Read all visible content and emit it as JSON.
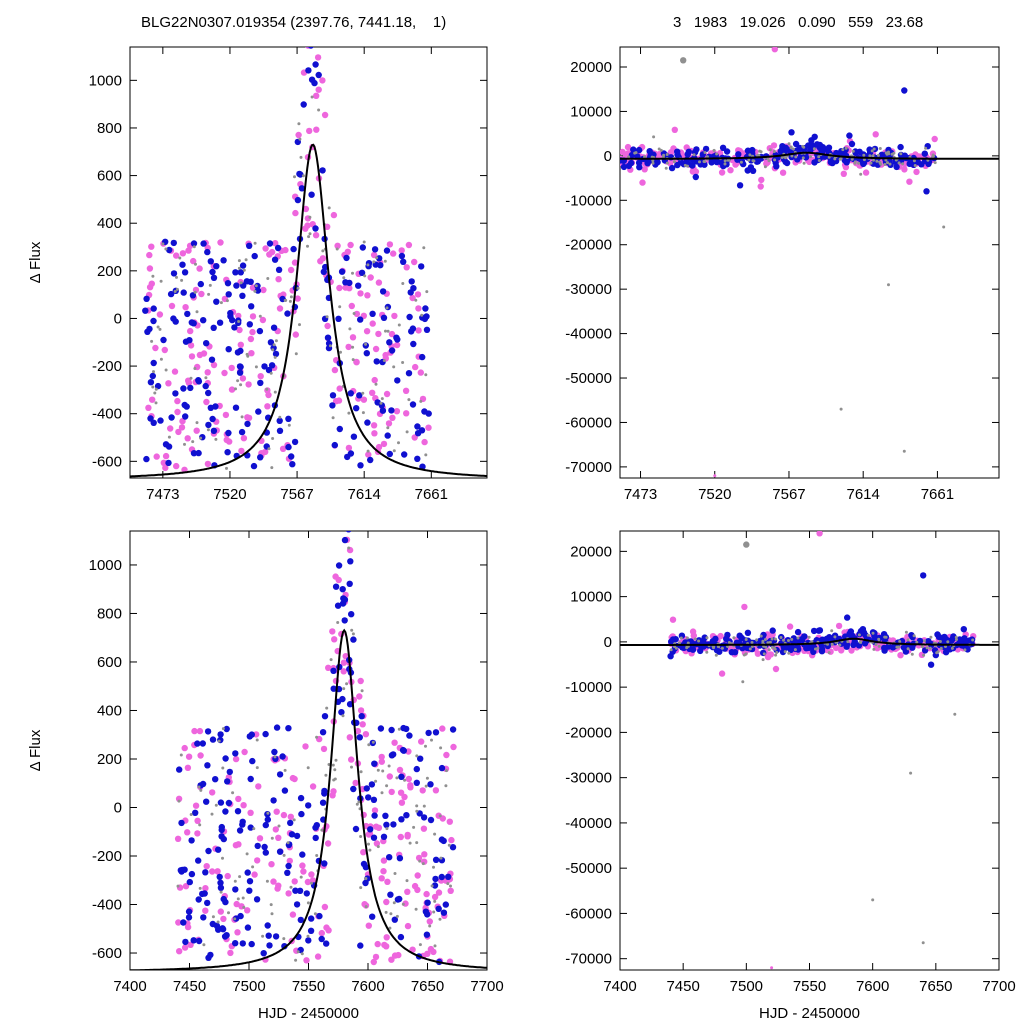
{
  "header": {
    "left": "BLG22N0307.019354 (2397.76, 7441.18,    1)",
    "right": "3   1983   19.026   0.090   559   23.68"
  },
  "colors": {
    "series_a": "#ee66dd",
    "series_b": "#1010d0",
    "series_c": "#909090",
    "model": "#000000"
  },
  "chart_data": [
    {
      "type": "scatter",
      "panel": "top-left",
      "title": "",
      "xlabel": "",
      "ylabel": "Δ Flux",
      "xlim": [
        7450,
        7700
      ],
      "ylim": [
        -670,
        1140
      ],
      "xticks": [
        7473,
        7520,
        7567,
        7614,
        7661
      ],
      "yticks": [
        -600,
        -400,
        -200,
        0,
        200,
        400,
        600,
        800,
        1000
      ],
      "model": {
        "type": "peak",
        "t0": 7578,
        "peak": 730,
        "baseline": -680,
        "width": 14
      },
      "series": [
        {
          "color": "series_a",
          "x_range": [
            7460,
            7660
          ]
        },
        {
          "color": "series_b",
          "x_range": [
            7460,
            7660
          ]
        },
        {
          "color": "series_c",
          "x_range": [
            7460,
            7660
          ]
        }
      ]
    },
    {
      "type": "scatter",
      "panel": "top-right",
      "title": "",
      "xlabel": "",
      "ylabel": "",
      "xlim": [
        7460,
        7700
      ],
      "ylim": [
        -72500,
        24500
      ],
      "xticks": [
        7473,
        7520,
        7567,
        7614,
        7661
      ],
      "yticks": [
        -70000,
        -60000,
        -50000,
        -40000,
        -30000,
        -20000,
        -10000,
        0,
        10000,
        20000
      ],
      "model": {
        "type": "peak",
        "t0": 7578,
        "peak": 700,
        "baseline": -700,
        "width": 18
      },
      "series": [
        {
          "color": "series_a",
          "x_range": [
            7460,
            7660
          ]
        },
        {
          "color": "series_b",
          "x_range": [
            7460,
            7660
          ]
        },
        {
          "color": "series_c",
          "x_range": [
            7460,
            7660
          ]
        }
      ]
    },
    {
      "type": "scatter",
      "panel": "bottom-left",
      "title": "",
      "xlabel": "HJD - 2450000",
      "ylabel": "Δ Flux",
      "xlim": [
        7400,
        7700
      ],
      "ylim": [
        -670,
        1140
      ],
      "xticks": [
        7400,
        7450,
        7500,
        7550,
        7600,
        7650,
        7700
      ],
      "yticks": [
        -600,
        -400,
        -200,
        0,
        200,
        400,
        600,
        800,
        1000
      ],
      "model": {
        "type": "peak",
        "t0": 7580,
        "peak": 730,
        "baseline": -680,
        "width": 14
      },
      "series": [
        {
          "color": "series_a",
          "x_range": [
            7440,
            7672
          ]
        },
        {
          "color": "series_b",
          "x_range": [
            7440,
            7672
          ]
        },
        {
          "color": "series_c",
          "x_range": [
            7440,
            7672
          ]
        }
      ]
    },
    {
      "type": "scatter",
      "panel": "bottom-right",
      "title": "",
      "xlabel": "HJD - 2450000",
      "ylabel": "",
      "xlim": [
        7400,
        7700
      ],
      "ylim": [
        -72500,
        24500
      ],
      "xticks": [
        7400,
        7450,
        7500,
        7550,
        7600,
        7650,
        7700
      ],
      "yticks": [
        -70000,
        -60000,
        -50000,
        -40000,
        -30000,
        -20000,
        -10000,
        0,
        10000,
        20000
      ],
      "model": {
        "type": "peak",
        "t0": 7585,
        "peak": 700,
        "baseline": -700,
        "width": 18
      },
      "series": [
        {
          "color": "series_a",
          "x_range": [
            7440,
            7680
          ]
        },
        {
          "color": "series_b",
          "x_range": [
            7440,
            7680
          ]
        },
        {
          "color": "series_c",
          "x_range": [
            7440,
            7680
          ]
        }
      ]
    }
  ]
}
